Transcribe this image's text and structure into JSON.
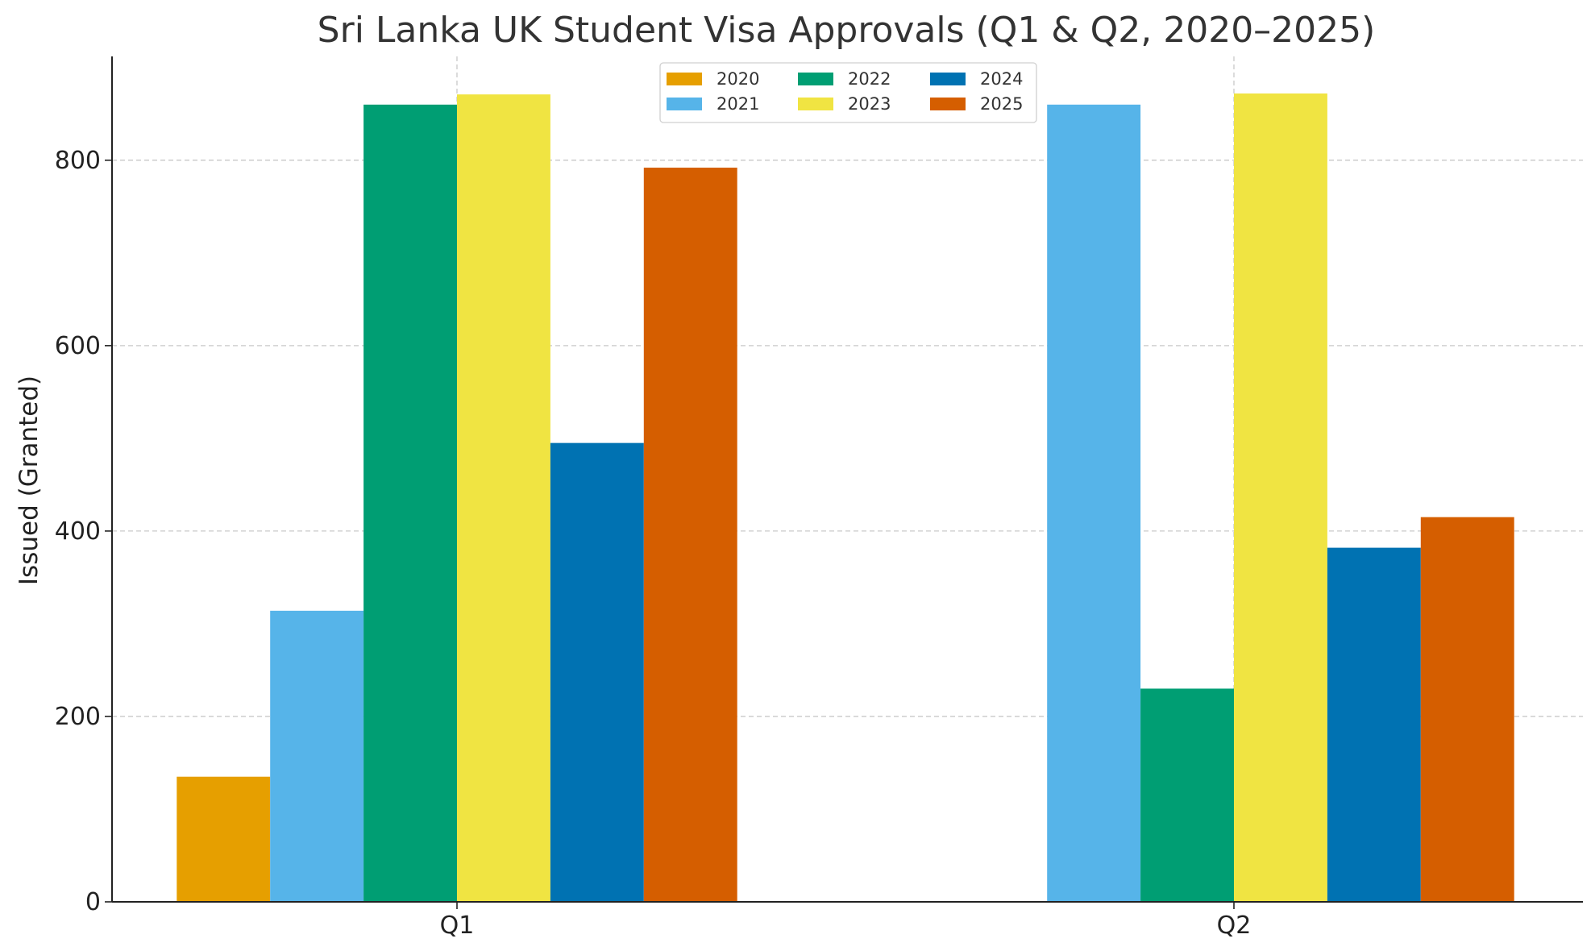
{
  "chart_data": {
    "type": "bar",
    "title": "Sri Lanka UK Student Visa Approvals (Q1 & Q2, 2020–2025)",
    "xlabel": "",
    "ylabel": "Issued (Granted)",
    "categories": [
      "Q1",
      "Q2"
    ],
    "ylim": [
      0,
      912
    ],
    "yticks": [
      0,
      200,
      400,
      600,
      800
    ],
    "grid": true,
    "legend_position": "top-center",
    "series": [
      {
        "name": "2020",
        "color": "#E69F00",
        "values": [
          135,
          0
        ]
      },
      {
        "name": "2021",
        "color": "#56B4E9",
        "values": [
          314,
          860
        ]
      },
      {
        "name": "2022",
        "color": "#009E73",
        "values": [
          860,
          230
        ]
      },
      {
        "name": "2023",
        "color": "#F0E442",
        "values": [
          871,
          872
        ]
      },
      {
        "name": "2024",
        "color": "#0072B2",
        "values": [
          495,
          382
        ]
      },
      {
        "name": "2025",
        "color": "#D55E00",
        "values": [
          792,
          415
        ]
      }
    ]
  }
}
